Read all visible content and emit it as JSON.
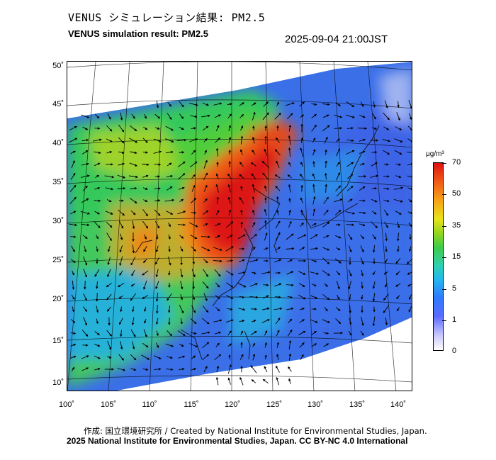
{
  "header": {
    "title_jp": "VENUS シミュレーション結果: PM2.5",
    "title_en": "VENUS simulation result: PM2.5",
    "timestamp": "2025-09-04 21:00JST"
  },
  "map": {
    "lat_labels": [
      "50˚",
      "45˚",
      "40˚",
      "35˚",
      "30˚",
      "25˚",
      "20˚",
      "15˚",
      "10˚"
    ],
    "lon_labels": [
      "100˚",
      "105˚",
      "110˚",
      "115˚",
      "120˚",
      "125˚",
      "130˚",
      "135˚",
      "140˚"
    ],
    "field": "PM2.5 concentration",
    "overlay": "wind vectors"
  },
  "colorbar": {
    "unit": "μg/m³",
    "labels": [
      "70",
      "50",
      "35",
      "15",
      "5",
      "1",
      "0"
    ],
    "colors": {
      "max": "#dd1212",
      "high": "#f05a17",
      "mid_high": "#e9e31a",
      "mid": "#3fcc4a",
      "low": "#23b8ee",
      "lower": "#2f7bff",
      "min": "#ffffff"
    }
  },
  "footer": {
    "credit_line_1": "作成: 国立環境研究所 / Created by National Institute for Environmental Studies, Japan.",
    "credit_line_2": "2025 National Institute for Environmental Studies, Japan. CC BY-NC 4.0 International"
  }
}
